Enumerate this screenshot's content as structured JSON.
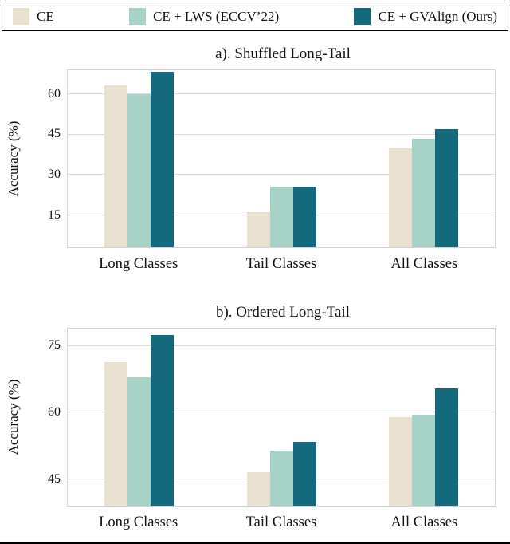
{
  "legend": {
    "items": [
      {
        "label": "CE",
        "color": "#e9e0d0"
      },
      {
        "label": "CE + LWS (ECCV’22)",
        "color": "#a6d2c7"
      },
      {
        "label": "CE + GVAlign (Ours)",
        "color": "#15697d"
      }
    ]
  },
  "chart_data": [
    {
      "type": "bar",
      "title": "a). Shuffled Long-Tail",
      "ylabel": "Accuracy (%)",
      "categories": [
        "Long Classes",
        "Tail Classes",
        "All Classes"
      ],
      "yticks": [
        15,
        30,
        45,
        60
      ],
      "ylim": [
        3,
        69
      ],
      "grid": true,
      "legend_position": "top",
      "series": [
        {
          "name": "CE",
          "color": "#e9e0d0",
          "values": [
            63.5,
            16,
            40
          ]
        },
        {
          "name": "CE + LWS (ECCV’22)",
          "color": "#a6d2c7",
          "values": [
            60,
            25.5,
            43.5
          ]
        },
        {
          "name": "CE + GVAlign (Ours)",
          "color": "#15697d",
          "values": [
            68.5,
            25.5,
            47
          ]
        }
      ]
    },
    {
      "type": "bar",
      "title": "b). Ordered Long-Tail",
      "ylabel": "Accuracy (%)",
      "categories": [
        "Long Classes",
        "Tail Classes",
        "All Classes"
      ],
      "yticks": [
        45,
        60,
        75
      ],
      "ylim": [
        39,
        79
      ],
      "grid": true,
      "legend_position": "top",
      "series": [
        {
          "name": "CE",
          "color": "#e9e0d0",
          "values": [
            71.5,
            46.5,
            59
          ]
        },
        {
          "name": "CE + LWS (ECCV’22)",
          "color": "#a6d2c7",
          "values": [
            68,
            51.5,
            59.5
          ]
        },
        {
          "name": "CE + GVAlign (Ours)",
          "color": "#15697d",
          "values": [
            77.5,
            53.5,
            65.5
          ]
        }
      ]
    }
  ]
}
